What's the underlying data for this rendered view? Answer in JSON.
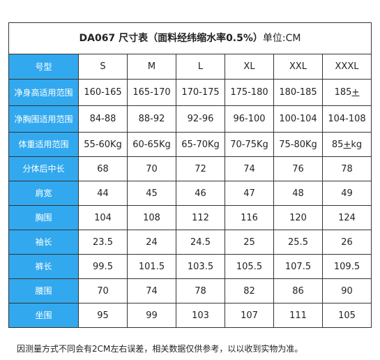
{
  "title": {
    "main": "DA067 尺寸表（面料经纬缩水率0.5%）",
    "unit": "单位:CM"
  },
  "header": {
    "label": "号型",
    "sizes": [
      "S",
      "M",
      "L",
      "XL",
      "XXL",
      "XXXL"
    ]
  },
  "rows": [
    {
      "label": "净身高适用范围",
      "values": [
        "160-165",
        "165-170",
        "170-175",
        "175-180",
        "180-185",
        "185+"
      ]
    },
    {
      "label": "净胸围适用范围",
      "values": [
        "84-88",
        "88-92",
        "92-96",
        "96-100",
        "100-104",
        "104-108"
      ]
    },
    {
      "label": "体重适用范围",
      "values": [
        "55-60Kg",
        "60-65Kg",
        "65-70Kg",
        "70-75Kg",
        "75-80Kg",
        "85+kg"
      ]
    },
    {
      "label": "分体后中长",
      "values": [
        "68",
        "70",
        "72",
        "74",
        "76",
        "78"
      ]
    },
    {
      "label": "肩宽",
      "values": [
        "44",
        "45",
        "46",
        "47",
        "48",
        "49"
      ]
    },
    {
      "label": "胸围",
      "values": [
        "104",
        "108",
        "112",
        "116",
        "120",
        "124"
      ]
    },
    {
      "label": "袖长",
      "values": [
        "23.5",
        "24",
        "24.5",
        "25",
        "25.5",
        "26"
      ]
    },
    {
      "label": "裤长",
      "values": [
        "99.5",
        "101.5",
        "103.5",
        "105.5",
        "107.5",
        "109.5"
      ]
    },
    {
      "label": "腰围",
      "values": [
        "70",
        "74",
        "78",
        "82",
        "86",
        "90"
      ]
    },
    {
      "label": "坐围",
      "values": [
        "95",
        "99",
        "103",
        "107",
        "111",
        "105"
      ]
    }
  ],
  "footnote": "因测量方式不同会有2CM左右误差，相关数据仅供参考，以以收到实物为准。",
  "colors": {
    "header_bg": "#32a9ee",
    "header_text": "#ffffff",
    "border": "#333333"
  }
}
